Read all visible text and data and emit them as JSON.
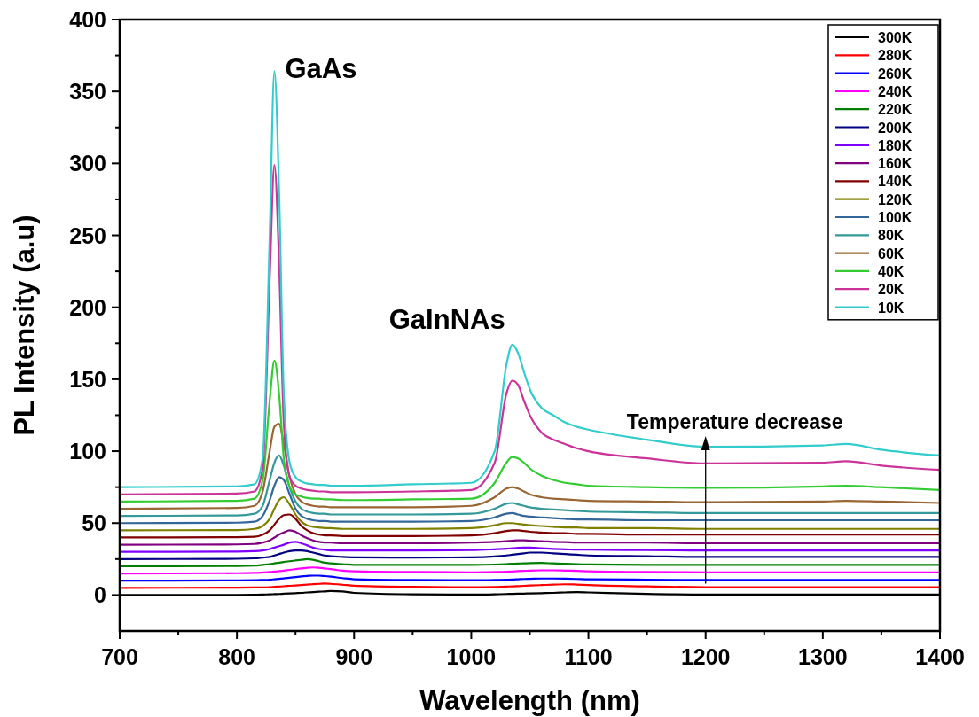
{
  "chart_data": {
    "type": "line",
    "xlabel": "Wavelength (nm)",
    "ylabel": "PL Intensity (a.u)",
    "x": [
      700,
      800,
      815,
      822,
      828,
      832,
      836,
      840,
      845,
      850,
      855,
      860,
      865,
      870,
      875,
      880,
      890,
      900,
      950,
      1000,
      1020,
      1030,
      1035,
      1040,
      1045,
      1050,
      1060,
      1070,
      1080,
      1090,
      1100,
      1150,
      1200,
      1300,
      1320,
      1350,
      1400
    ],
    "xlim": [
      700,
      1400
    ],
    "ylim": [
      -25,
      400
    ],
    "xticks": [
      700,
      {
        "value": 750,
        "label": null
      },
      800,
      {
        "value": 850,
        "label": null
      },
      900,
      {
        "value": 950,
        "label": null
      },
      1000,
      {
        "value": 1050,
        "label": null
      },
      1100,
      {
        "value": 1150,
        "label": null
      },
      1200,
      {
        "value": 1250,
        "label": null
      },
      1300,
      {
        "value": 1350,
        "label": null
      },
      1400
    ],
    "yticks": [
      0,
      {
        "value": 25,
        "label": null
      },
      50,
      {
        "value": 75,
        "label": null
      },
      100,
      {
        "value": 125,
        "label": null
      },
      150,
      {
        "value": 175,
        "label": null
      },
      200,
      {
        "value": 225,
        "label": null
      },
      250,
      {
        "value": 275,
        "label": null
      },
      300,
      {
        "value": 325,
        "label": null
      },
      350,
      {
        "value": 375,
        "label": null
      },
      400
    ],
    "grid": false,
    "legend": "top right",
    "marker": "none",
    "line_style": "solid",
    "annotations": [
      {
        "text": "GaAs",
        "x": 832,
        "y": 364
      },
      {
        "text": "GaInNAs",
        "x": 1035,
        "y": 174
      },
      {
        "text": "Temperature decrease",
        "x": 1200,
        "y": 108
      }
    ],
    "series": [
      {
        "name": "300K",
        "color": "#000000",
        "values": [
          0,
          0.1,
          0.2,
          0.3,
          0.5,
          0.6,
          0.7,
          0.9,
          1.1,
          1.3,
          1.5,
          1.8,
          2,
          2.3,
          2.5,
          2.8,
          2.5,
          1.5,
          0.5,
          0.3,
          0.5,
          0.7,
          0.8,
          0.9,
          1,
          1.1,
          1.3,
          1.5,
          1.8,
          2,
          1.8,
          0.8,
          0.3,
          0.3,
          0.3,
          0.3,
          0.3
        ]
      },
      {
        "name": "280K",
        "color": "#ff0000",
        "values": [
          5,
          5.1,
          5.2,
          5.3,
          5.5,
          5.7,
          5.9,
          6.1,
          6.4,
          6.7,
          7,
          7.3,
          7.6,
          7.8,
          8,
          7.8,
          7.2,
          6.5,
          5.7,
          5.4,
          5.6,
          5.9,
          6,
          6.2,
          6.4,
          6.6,
          6.9,
          7.2,
          7.5,
          7.3,
          7,
          6,
          5.5,
          5.5,
          5.5,
          5.5,
          5.5
        ]
      },
      {
        "name": "260K",
        "color": "#0000ff",
        "values": [
          10,
          10.2,
          10.3,
          10.5,
          10.7,
          11,
          11.3,
          11.6,
          12,
          12.5,
          13,
          13.3,
          13.5,
          13.5,
          13.2,
          12.8,
          11.8,
          11,
          10.5,
          10.3,
          10.5,
          10.7,
          10.8,
          11,
          11.2,
          11.3,
          11.5,
          11.5,
          11.4,
          11.2,
          11,
          10.7,
          10.5,
          10.5,
          10.5,
          10.5,
          10.5
        ]
      },
      {
        "name": "240K",
        "color": "#ff00ff",
        "values": [
          15,
          15.2,
          15.4,
          15.7,
          16,
          16.3,
          16.6,
          17,
          17.5,
          18,
          18.5,
          19,
          19.2,
          19,
          18.5,
          18,
          17,
          16.5,
          16,
          15.8,
          16,
          16.2,
          16.4,
          16.6,
          16.8,
          17,
          17.2,
          17.2,
          17,
          16.8,
          16.5,
          16,
          15.8,
          15.8,
          15.8,
          15.8,
          15.8
        ]
      },
      {
        "name": "220K",
        "color": "#008000",
        "values": [
          20,
          20.2,
          20.5,
          21,
          21.5,
          22,
          22.5,
          23,
          23.5,
          24,
          24.5,
          25,
          24.5,
          23.5,
          22.5,
          22,
          21.5,
          21,
          21,
          21,
          21.2,
          21.5,
          21.7,
          21.9,
          22,
          22.2,
          22.3,
          22,
          21.8,
          21.5,
          21.3,
          21,
          21,
          21,
          21,
          21,
          21
        ]
      },
      {
        "name": "200K",
        "color": "#000080",
        "values": [
          25,
          25.2,
          25.5,
          26,
          26.5,
          27.5,
          28.5,
          29.5,
          30.5,
          31,
          31,
          30.5,
          29.5,
          28.5,
          27.5,
          27,
          26.5,
          26.2,
          26,
          26.2,
          26.8,
          27.5,
          28,
          28.5,
          29,
          29.5,
          29.5,
          29,
          28.5,
          28,
          27.5,
          27,
          26.5,
          26.5,
          26.5,
          26.5,
          26.5
        ]
      },
      {
        "name": "180K",
        "color": "#8000ff",
        "values": [
          30,
          30.2,
          30.5,
          31,
          32,
          33,
          34,
          35,
          36.5,
          37,
          36,
          34.5,
          33,
          32,
          31.5,
          31,
          31,
          31,
          31,
          31.2,
          31.8,
          32.2,
          32.5,
          32.8,
          33,
          33,
          32.5,
          32,
          31.8,
          31.5,
          31.5,
          31.2,
          31,
          31,
          31,
          31,
          31
        ]
      },
      {
        "name": "160K",
        "color": "#800080",
        "values": [
          35,
          35.2,
          35.5,
          36.5,
          38,
          40,
          42,
          43.5,
          45,
          44,
          41.5,
          39.5,
          38,
          37,
          36.5,
          36.5,
          36,
          36,
          36,
          36.5,
          37,
          37.5,
          37.8,
          38,
          38,
          37.8,
          37.5,
          37,
          36.8,
          36.5,
          36.5,
          36.5,
          36,
          36,
          36,
          36,
          36
        ]
      },
      {
        "name": "140K",
        "color": "#800000",
        "values": [
          40,
          40.2,
          40.5,
          42,
          45,
          49,
          53,
          55.5,
          56,
          53,
          48,
          45,
          43,
          42,
          41.5,
          41.5,
          41,
          41,
          41,
          41.5,
          43,
          44.5,
          45,
          45,
          44.5,
          44,
          43.5,
          43,
          43,
          42.5,
          42.5,
          42,
          42,
          42,
          42,
          42,
          42
        ]
      },
      {
        "name": "120K",
        "color": "#808000",
        "values": [
          45,
          45.2,
          46,
          48,
          53,
          60,
          66,
          68,
          63,
          56,
          51,
          48.5,
          47.5,
          47,
          46.5,
          46.5,
          46,
          46,
          46,
          46.5,
          48.5,
          50,
          50,
          49.5,
          49,
          48.5,
          48,
          47.5,
          47,
          47,
          46.5,
          46.5,
          46,
          46,
          46,
          46,
          46
        ]
      },
      {
        "name": "100K",
        "color": "#336699",
        "values": [
          50,
          50.3,
          51,
          55,
          66,
          76,
          82,
          80,
          70,
          60,
          55,
          53,
          52,
          51.5,
          51.5,
          51,
          51,
          51,
          51,
          51.5,
          54,
          56.5,
          57,
          56,
          55,
          54.5,
          54,
          53.5,
          53,
          52.5,
          52.5,
          52,
          52,
          52,
          52,
          52,
          52
        ]
      },
      {
        "name": "80K",
        "color": "#339999",
        "values": [
          55,
          55.3,
          56.5,
          62,
          80,
          92,
          97,
          90,
          75,
          65,
          60,
          58,
          57,
          56.5,
          56.5,
          56,
          56,
          56,
          56,
          56.5,
          60,
          63.5,
          64,
          63,
          62,
          61,
          60,
          59.5,
          59,
          58.5,
          58,
          57.5,
          57,
          57,
          57,
          57,
          57
        ]
      },
      {
        "name": "60K",
        "color": "#996633",
        "values": [
          60,
          60.5,
          62,
          72,
          100,
          117,
          119,
          105,
          82,
          70,
          65,
          63,
          62,
          61.5,
          61.5,
          61,
          61,
          61,
          61,
          62,
          68,
          74,
          75,
          74,
          72,
          70,
          68,
          67,
          66.5,
          66,
          65.5,
          65,
          64.5,
          65,
          65.5,
          65,
          64
        ]
      },
      {
        "name": "40K",
        "color": "#33cc33",
        "values": [
          65,
          65.5,
          67,
          80,
          135,
          163,
          140,
          95,
          75,
          70,
          68.5,
          67.5,
          67,
          67,
          66.5,
          66.5,
          66,
          66,
          66.5,
          67,
          78,
          92,
          96,
          95,
          92,
          88,
          83,
          80,
          78,
          77,
          76,
          75,
          74.5,
          75.5,
          76,
          75,
          73
        ]
      },
      {
        "name": "20K",
        "color": "#cc3399",
        "values": [
          70,
          70.5,
          72,
          88,
          220,
          299,
          230,
          120,
          82,
          76,
          74,
          73,
          72.5,
          72,
          72,
          71.5,
          71.5,
          71.5,
          72,
          73,
          92,
          140,
          149,
          146,
          135,
          125,
          113,
          108,
          105,
          102,
          100,
          95,
          91.5,
          92,
          93,
          90,
          87
        ]
      },
      {
        "name": "10K",
        "color": "#33cccc",
        "values": [
          75,
          75.5,
          77,
          95,
          250,
          364,
          280,
          140,
          92,
          82,
          79,
          77.5,
          77,
          76.5,
          76.5,
          76,
          76,
          76,
          77,
          78,
          100,
          160,
          174,
          168,
          155,
          143,
          130,
          125,
          120,
          117,
          115,
          108,
          103,
          104,
          105,
          101,
          97
        ]
      }
    ]
  }
}
